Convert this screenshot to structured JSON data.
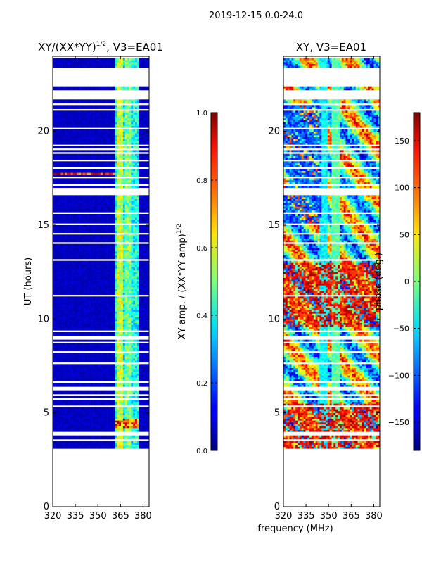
{
  "figure": {
    "suptitle": "2019-12-15 0.0-24.0",
    "shared_xlabel": "frequency (MHz)"
  },
  "chart_data": [
    {
      "type": "heatmap",
      "title_main": "XY/(XX*YY)",
      "title_exp": "1/2",
      "title_suffix": ", V3=EA01",
      "ylabel": "UT (hours)",
      "xlim": [
        320,
        384
      ],
      "ylim": [
        0,
        24
      ],
      "xticks": [
        320,
        335,
        350,
        365,
        380
      ],
      "yticks": [
        0,
        5,
        10,
        15,
        20
      ],
      "colorbar": {
        "label_main": "XY amp. / (XX*YY amp)",
        "label_exp": "1/2",
        "range": [
          0.0,
          1.0
        ],
        "ticks": [
          "0.0",
          "0.2",
          "0.4",
          "0.6",
          "0.8",
          "1.0"
        ],
        "colormap": "jet"
      }
    },
    {
      "type": "heatmap",
      "title": "XY, V3=EA01",
      "xlim": [
        320,
        384
      ],
      "ylim": [
        0,
        24
      ],
      "xticks": [
        320,
        335,
        350,
        365,
        380
      ],
      "yticks": [
        0,
        5,
        10,
        15,
        20
      ],
      "colorbar": {
        "label": "phase (deg.)",
        "range": [
          -180,
          180
        ],
        "ticks": [
          "−150",
          "−100",
          "−50",
          "0",
          "50",
          "100",
          "150"
        ],
        "colormap": "jet"
      }
    }
  ]
}
